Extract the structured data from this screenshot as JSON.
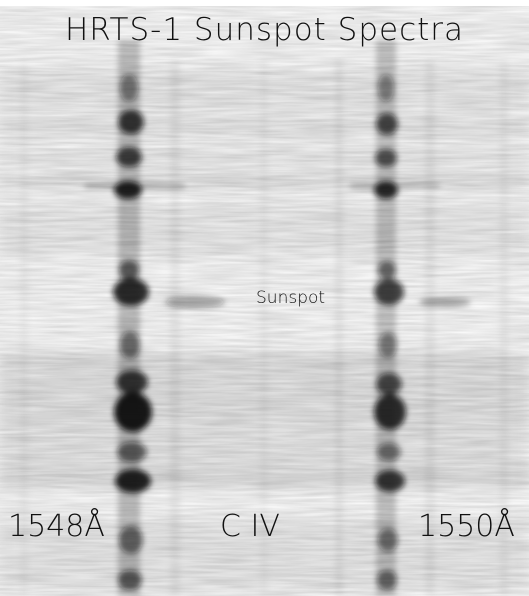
{
  "title": "HRTS-1 Sunspot Spectra",
  "region_label": "Sunspot",
  "wavelength_left": "1548Å",
  "ion_label": "C IV",
  "wavelength_right": "1550Å",
  "colors": {
    "background": "#ffffff",
    "emission": "#111111"
  }
}
